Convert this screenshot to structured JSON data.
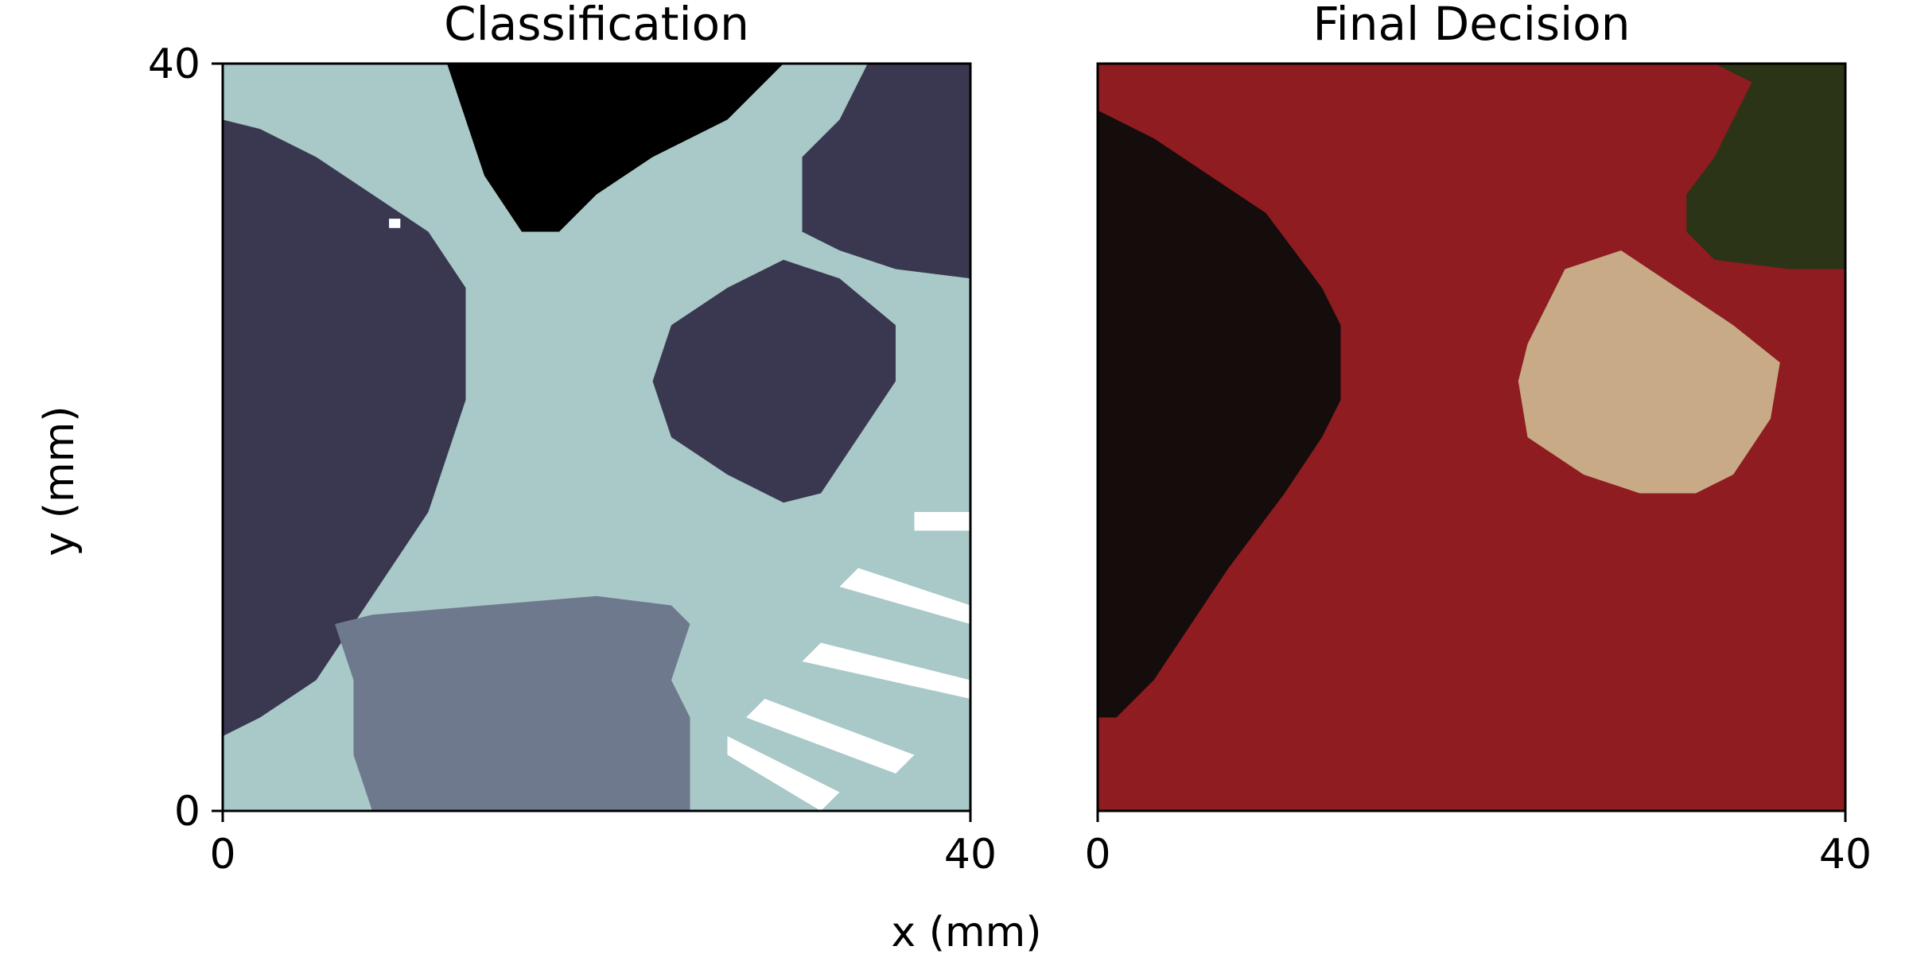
{
  "figure": {
    "xlabel": "x (mm)",
    "ylabel": "y (mm)"
  },
  "chart_data": [
    {
      "type": "heatmap",
      "title": "Classification",
      "xlim": [
        0,
        40
      ],
      "ylim": [
        0,
        40
      ],
      "xticks": [
        0,
        40
      ],
      "yticks": [
        0,
        40
      ],
      "x_tick_labels": [
        "0",
        "40"
      ],
      "y_tick_labels": [
        "0",
        "40"
      ],
      "colors": {
        "background_class": "#a9c8c8",
        "dark_class": "#3a3850",
        "black_class": "#000000",
        "slate_class": "#6e798e",
        "white_class": "#ffffff"
      },
      "regions": [
        {
          "class": "dark_class",
          "polygon": [
            [
              0,
              37
            ],
            [
              2,
              36.5
            ],
            [
              5,
              35
            ],
            [
              8,
              33
            ],
            [
              11,
              31
            ],
            [
              13,
              28
            ],
            [
              13,
              22
            ],
            [
              12,
              19
            ],
            [
              11,
              16
            ],
            [
              9,
              13
            ],
            [
              7,
              10
            ],
            [
              5,
              7
            ],
            [
              2,
              5
            ],
            [
              0,
              4
            ]
          ]
        },
        {
          "class": "black_class",
          "polygon": [
            [
              12,
              40
            ],
            [
              30,
              40
            ],
            [
              27,
              37
            ],
            [
              23,
              35
            ],
            [
              20,
              33
            ],
            [
              18,
              31
            ],
            [
              16,
              31
            ],
            [
              14,
              34
            ],
            [
              13,
              37
            ]
          ]
        },
        {
          "class": "dark_class",
          "polygon": [
            [
              34.5,
              40
            ],
            [
              40,
              40
            ],
            [
              40,
              28.5
            ],
            [
              36,
              29
            ],
            [
              33,
              30
            ],
            [
              31,
              31
            ],
            [
              31,
              35
            ],
            [
              33,
              37
            ],
            [
              34,
              39
            ]
          ]
        },
        {
          "class": "dark_class",
          "polygon": [
            [
              24,
              26
            ],
            [
              27,
              28
            ],
            [
              30,
              29.5
            ],
            [
              33,
              28.5
            ],
            [
              36,
              26
            ],
            [
              36,
              23
            ],
            [
              34,
              20
            ],
            [
              32,
              17
            ],
            [
              30,
              16.5
            ],
            [
              27,
              18
            ],
            [
              24,
              20
            ],
            [
              23,
              23
            ]
          ]
        },
        {
          "class": "slate_class",
          "polygon": [
            [
              6,
              10
            ],
            [
              8,
              10.5
            ],
            [
              14,
              11
            ],
            [
              20,
              11.5
            ],
            [
              24,
              11
            ],
            [
              25,
              10
            ],
            [
              24,
              7
            ],
            [
              25,
              5
            ],
            [
              25,
              0
            ],
            [
              8,
              0
            ],
            [
              7,
              3
            ],
            [
              7,
              7
            ]
          ]
        },
        {
          "class": "white_class",
          "polygon": [
            [
              37,
              16
            ],
            [
              40,
              16
            ],
            [
              40,
              15
            ],
            [
              37,
              15
            ]
          ]
        },
        {
          "class": "white_class",
          "polygon": [
            [
              34,
              13
            ],
            [
              40,
              11
            ],
            [
              40,
              10
            ],
            [
              33,
              12
            ]
          ]
        },
        {
          "class": "white_class",
          "polygon": [
            [
              32,
              9
            ],
            [
              40,
              7
            ],
            [
              40,
              6
            ],
            [
              31,
              8
            ]
          ]
        },
        {
          "class": "white_class",
          "polygon": [
            [
              29,
              6
            ],
            [
              37,
              3
            ],
            [
              36,
              2
            ],
            [
              28,
              5
            ]
          ]
        },
        {
          "class": "white_class",
          "polygon": [
            [
              27,
              4
            ],
            [
              33,
              1
            ],
            [
              32,
              0
            ],
            [
              27,
              3
            ]
          ]
        },
        {
          "class": "white_class",
          "polygon": [
            [
              8.9,
              31.7
            ],
            [
              9.5,
              31.7
            ],
            [
              9.5,
              31.2
            ],
            [
              8.9,
              31.2
            ]
          ]
        }
      ]
    },
    {
      "type": "heatmap",
      "title": "Final Decision",
      "xlim": [
        0,
        40
      ],
      "ylim": [
        0,
        40
      ],
      "xticks": [
        0,
        40
      ],
      "x_tick_labels": [
        "0",
        "40"
      ],
      "colors": {
        "overlay_class": "#8e1c20",
        "black_object": "#150c0c",
        "green_object": "#2b3416",
        "tan_object": "#c8aa86"
      },
      "regions": [
        {
          "class": "black_object",
          "polygon": [
            [
              0,
              37.5
            ],
            [
              3,
              36
            ],
            [
              6,
              34
            ],
            [
              9,
              32
            ],
            [
              12,
              28
            ],
            [
              13,
              26
            ],
            [
              13,
              22
            ],
            [
              12,
              20
            ],
            [
              10,
              17
            ],
            [
              7,
              13
            ],
            [
              5,
              10
            ],
            [
              3,
              7
            ],
            [
              1,
              5
            ],
            [
              0,
              5
            ]
          ]
        },
        {
          "class": "green_object",
          "polygon": [
            [
              33,
              40
            ],
            [
              40,
              40
            ],
            [
              40,
              29
            ],
            [
              37,
              29
            ],
            [
              33,
              29.5
            ],
            [
              31.5,
              31
            ],
            [
              31.5,
              33
            ],
            [
              33,
              35
            ],
            [
              34,
              37
            ],
            [
              35,
              39
            ]
          ]
        },
        {
          "class": "tan_object",
          "polygon": [
            [
              23,
              25
            ],
            [
              25,
              29
            ],
            [
              28,
              30
            ],
            [
              31,
              28
            ],
            [
              34,
              26
            ],
            [
              36.5,
              24
            ],
            [
              36,
              21
            ],
            [
              34,
              18
            ],
            [
              32,
              17
            ],
            [
              29,
              17
            ],
            [
              26,
              18
            ],
            [
              23,
              20
            ],
            [
              22.5,
              23
            ]
          ]
        }
      ]
    }
  ]
}
